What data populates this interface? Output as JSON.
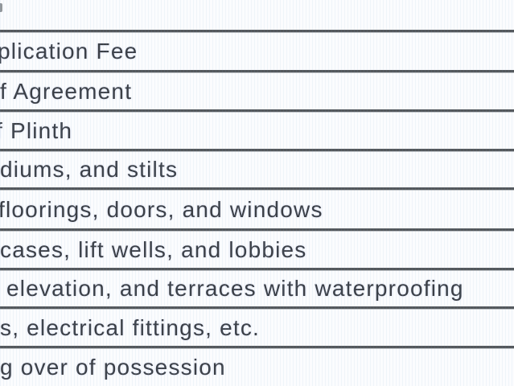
{
  "document": {
    "rows": [
      {
        "text": "plication Fee"
      },
      {
        "text": "f Agreement"
      },
      {
        "text": "f Plinth"
      },
      {
        "text": "diums, and stilts"
      },
      {
        "text": "floorings, doors, and windows"
      },
      {
        "text": "cases, lift wells, and lobbies"
      },
      {
        "text": "elevation, and terraces with waterproofing"
      },
      {
        "text": "s, electrical fittings, etc."
      },
      {
        "text": "g over of possession"
      }
    ],
    "colors": {
      "text": "#3b3f46",
      "rule_line": "#54585c",
      "background": "#fbfcfe"
    }
  }
}
